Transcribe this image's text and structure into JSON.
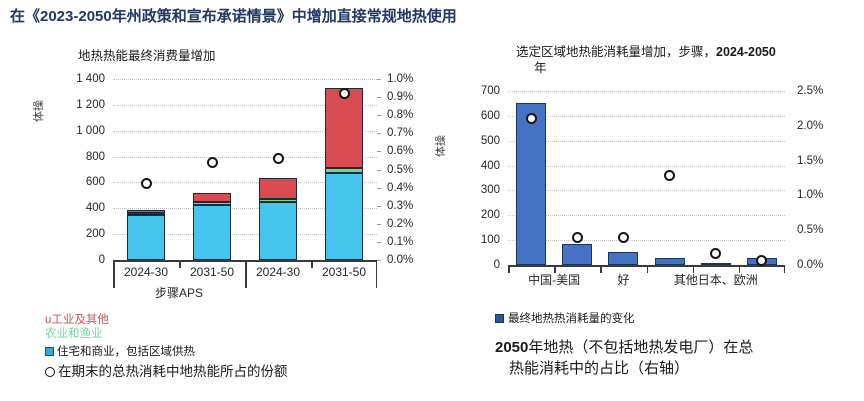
{
  "page_title": "在《2023-2050年州政策和宣布承诺情景》中增加直接常规地热使用",
  "colors": {
    "title_navy": "#1f3864",
    "bar_cyan": "#45c5ee",
    "bar_green": "#70db8e",
    "bar_red": "#d84b50",
    "bar_blue": "#4472c4",
    "bar_border_dark": "#1c2b3a",
    "bar_border_navy": "#17375e",
    "legend_red_text": "#c4575a",
    "legend_green_text": "#74d694"
  },
  "chart_data": [
    {
      "type": "bar",
      "stacked": true,
      "title": "地热热能最终消费量增加",
      "y_unit_label": "体操",
      "categories": [
        "2024-30",
        "2031-50",
        "2024-30",
        "2031-50"
      ],
      "group_label": "步骤APS",
      "series": [
        {
          "name": "住宅和商业，包括区域供热",
          "color": "#45c5ee",
          "values": [
            350,
            428,
            445,
            670
          ]
        },
        {
          "name": "农业和渔业",
          "color": "#70db8e",
          "values": [
            15,
            20,
            25,
            40
          ]
        },
        {
          "name": "工业及其他",
          "color": "#d84b50",
          "values": [
            25,
            72,
            165,
            620
          ]
        }
      ],
      "points": {
        "name": "在期末的总热消耗中地热能所占的份额",
        "values_pct": [
          0.42,
          0.54,
          0.56,
          0.92
        ]
      },
      "left_axis": {
        "min": 0,
        "max": 1400,
        "step": 200,
        "labels": [
          "0",
          "200",
          "400",
          "600",
          "800",
          "1 000",
          "1 200",
          "1 400"
        ]
      },
      "right_axis": {
        "min": 0,
        "max": 1.0,
        "step": 0.1,
        "labels": [
          "0.0%",
          "0.1%",
          "0.2%",
          "0.3%",
          "0.4%",
          "0.5%",
          "0.6%",
          "0.7%",
          "0.8%",
          "0.9%",
          "1.0%"
        ]
      },
      "grid": true,
      "legend_position": "below-left"
    },
    {
      "type": "bar",
      "stacked": false,
      "title_pre": "选定区域地热能消耗量增加，步骤，",
      "title_bold": "2024-2050",
      "title_line2": "年",
      "y_unit_label": "体操",
      "bar_color": "#4472c4",
      "values": [
        652,
        83,
        52,
        29,
        7,
        27
      ],
      "points_pct": [
        2.1,
        0.39,
        0.4,
        1.28,
        0.17,
        0.06
      ],
      "x_labels": [
        {
          "text": "中国-美国",
          "start": 0,
          "span": 2
        },
        {
          "text": "好",
          "start": 2,
          "span": 1
        },
        {
          "text": "其他日本、欧洲",
          "start": 3,
          "span": 3
        }
      ],
      "left_axis": {
        "min": 0,
        "max": 700,
        "step": 100,
        "labels": [
          "0",
          "100",
          "200",
          "300",
          "400",
          "500",
          "600",
          "700"
        ]
      },
      "right_axis": {
        "min": 0,
        "max": 2.5,
        "step": 0.5,
        "labels": [
          "0.0%",
          "0.5%",
          "1.0%",
          "1.5%",
          "2.0%",
          "2.5%"
        ]
      },
      "grid": true,
      "legend_position": "below-left"
    }
  ],
  "legend_left": {
    "items": [
      {
        "marker": "none",
        "text": "u工业及其他",
        "color": "#c4575a"
      },
      {
        "marker": "none",
        "text": "农业和渔业",
        "color": "#74d694"
      },
      {
        "marker": "square-cyan",
        "text": "住宅和商业，包括区域供热",
        "color": "#1a1a1a"
      },
      {
        "marker": "circle",
        "text": "在期末的总热消耗中地热能所占的份额",
        "color": "#1a1a1a"
      }
    ]
  },
  "legend_right": {
    "marker": "square-navy",
    "text": "最终地热热消耗量的变化"
  },
  "caption": {
    "bold": "2050",
    "line1": "年地热（不包括地热发电厂）在总",
    "line2": "热能消耗中的占比（右轴）"
  }
}
